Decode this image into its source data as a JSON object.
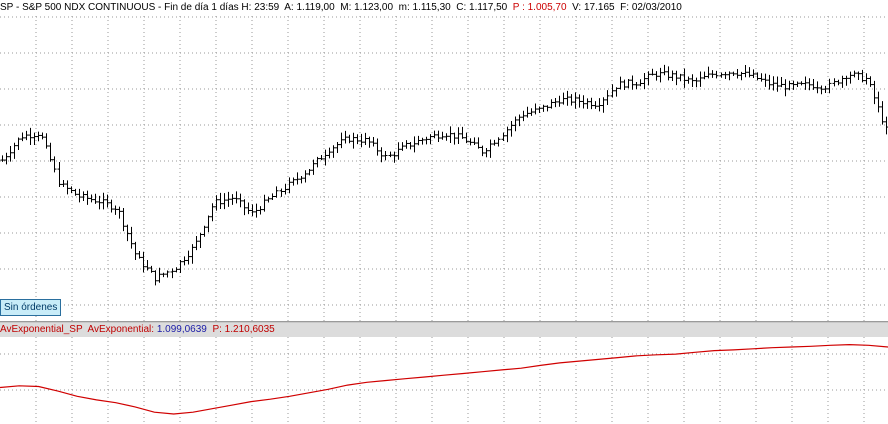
{
  "header": {
    "symbol": "SP",
    "description": "S&P 500 NDX CONTINUOUS",
    "period": "Fin de día 1 días",
    "time_label": "H:",
    "time_value": "23:59",
    "open_label": "A:",
    "open_value": "1.119,00",
    "high_label": "M:",
    "high_value": "1.123,00",
    "low_label": "m:",
    "low_value": "1.115,30",
    "close_label": "C:",
    "close_value": "1.117,50",
    "p_label": "P :",
    "p_value": "1.005,70",
    "volume_label": "V:",
    "volume_value": "17.165",
    "date_label": "F:",
    "date_value": "02/03/2010"
  },
  "orders_button": {
    "label": "Sin órdenes"
  },
  "indicator": {
    "name": "AvExponential_SP",
    "value_label": "AvExponential:",
    "value": "1.099,0639",
    "p_label": "P:",
    "p_value": "1.210,6035"
  },
  "colors": {
    "bars": "#000000",
    "grid": "#9a9a9a",
    "indicator_line": "#d00000",
    "highlight_value": "#1a1aa6",
    "p_value": "#cc0000",
    "splitter": "#c8c8c8",
    "indicator_header_bg": "#dcdcdc"
  },
  "chart_data": [
    {
      "type": "line",
      "series": [
        {
          "values": [
            1090,
            1112,
            1115,
            1067,
            1056,
            1052,
            1045,
            1000,
            980,
            990,
            1010,
            1050,
            1055,
            1040,
            1055,
            1068,
            1082,
            1100,
            1110,
            1108,
            1092,
            1103,
            1110,
            1115,
            1110,
            1098,
            1114,
            1132,
            1137,
            1146,
            1145,
            1142,
            1160,
            1162,
            1170,
            1168,
            1162,
            1170,
            1172,
            1168,
            1160,
            1158,
            1160,
            1158,
            1170,
            1165,
            1118
          ]
        }
      ]
    },
    {
      "type": "line",
      "series": [
        {
          "values": [
            1055,
            1060,
            1058,
            1045,
            1030,
            1020,
            1012,
            1000,
            985,
            980,
            985,
            995,
            1005,
            1015,
            1022,
            1030,
            1040,
            1050,
            1062,
            1070,
            1075,
            1080,
            1085,
            1090,
            1095,
            1100,
            1105,
            1110,
            1118,
            1125,
            1130,
            1135,
            1140,
            1145,
            1148,
            1150,
            1155,
            1160,
            1162,
            1165,
            1168,
            1170,
            1172,
            1175,
            1177,
            1175,
            1170
          ]
        }
      ]
    }
  ]
}
